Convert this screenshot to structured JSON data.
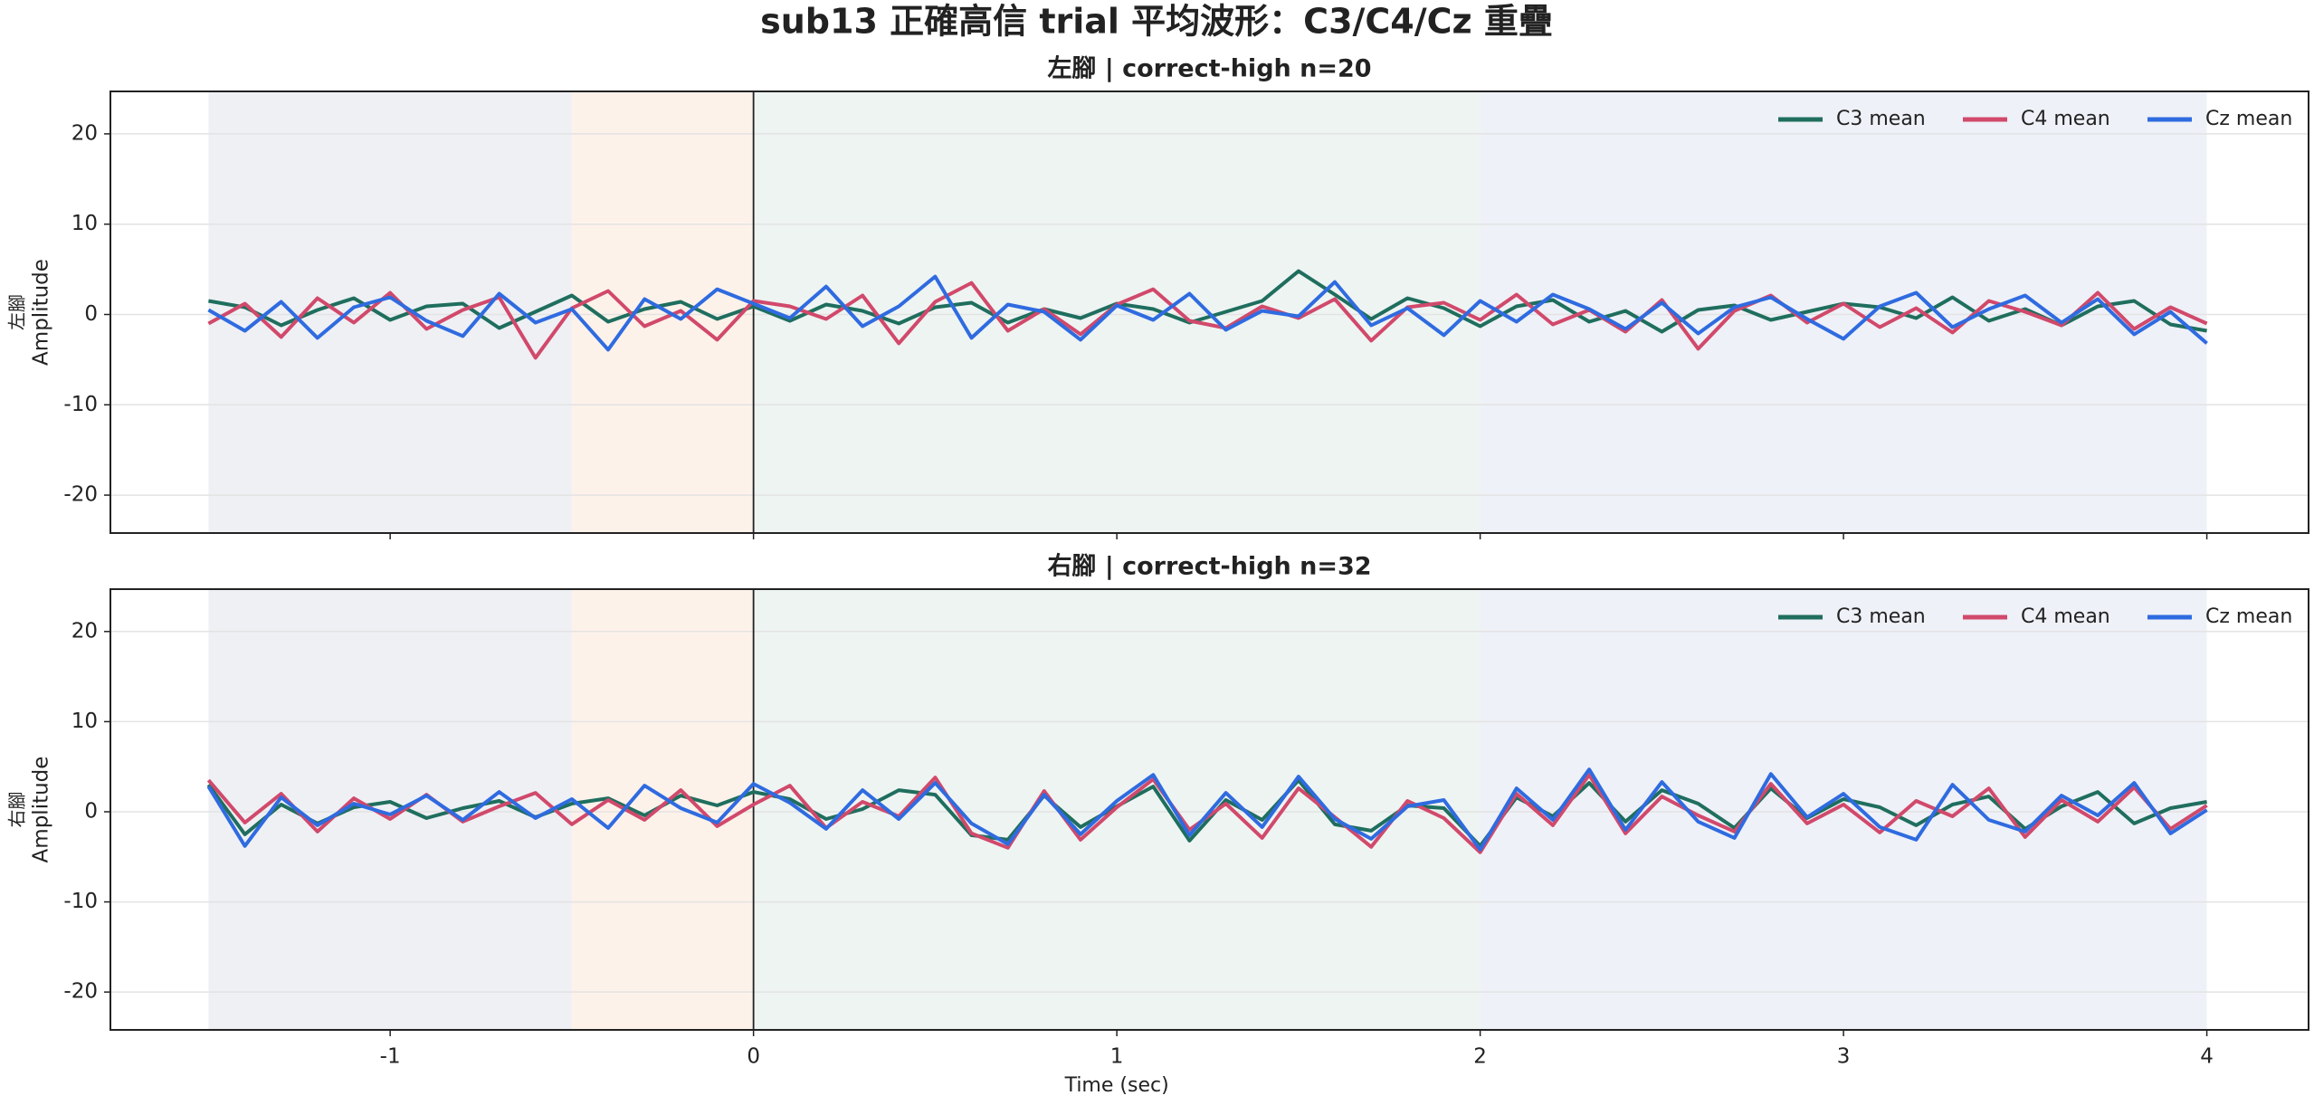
{
  "title": "sub13 正確高信 trial 平均波形：C3/C4/Cz 重疊",
  "chart_data": [
    {
      "type": "line",
      "title": "左腳 | correct-high n=20",
      "ylabel_group": "左腳",
      "ylabel": "Amplitude",
      "xlim": [
        -1.77,
        4.28
      ],
      "ylim": [
        -24.2,
        24.7
      ],
      "xticks": [
        -1,
        0,
        1,
        2,
        3,
        4
      ],
      "yticks": [
        -20,
        -10,
        0,
        10,
        20
      ],
      "show_xtick_labels": false,
      "grid": "y",
      "legend": "upper right",
      "vline": 0,
      "spans": [
        {
          "start": -1.5,
          "end": -0.5,
          "color": "#eef0f4"
        },
        {
          "start": -0.5,
          "end": 0,
          "color": "#fdf2ea"
        },
        {
          "start": 0,
          "end": 2,
          "color": "#eef4f2"
        },
        {
          "start": 2,
          "end": 4,
          "color": "#eef1f7"
        }
      ],
      "x": [
        -1.5,
        -1.4,
        -1.3,
        -1.2,
        -1.1,
        -1.0,
        -0.9,
        -0.8,
        -0.7,
        -0.6,
        -0.5,
        -0.4,
        -0.3,
        -0.2,
        -0.1,
        0,
        0.1,
        0.2,
        0.3,
        0.4,
        0.5,
        0.6,
        0.7,
        0.8,
        0.9,
        1.0,
        1.1,
        1.2,
        1.3,
        1.4,
        1.5,
        1.6,
        1.7,
        1.8,
        1.9,
        2.0,
        2.1,
        2.2,
        2.3,
        2.4,
        2.5,
        2.6,
        2.7,
        2.8,
        2.9,
        3.0,
        3.1,
        3.2,
        3.3,
        3.4,
        3.5,
        3.6,
        3.7,
        3.8,
        3.9,
        4.0
      ],
      "series": [
        {
          "name": "C3 mean",
          "color": "#1f6e5e",
          "values": [
            1.5,
            0.8,
            -1.2,
            0.5,
            1.8,
            -0.6,
            0.9,
            1.2,
            -1.5,
            0.3,
            2.1,
            -0.8,
            0.6,
            1.4,
            -0.5,
            0.9,
            -0.7,
            1.1,
            0.4,
            -1.0,
            0.8,
            1.3,
            -0.9,
            0.6,
            -0.4,
            1.2,
            0.6,
            -0.9,
            0.3,
            1.5,
            4.8,
            2.2,
            -0.5,
            1.8,
            0.7,
            -1.3,
            0.9,
            1.6,
            -0.8,
            0.4,
            -1.9,
            0.5,
            1.0,
            -0.6,
            0.3,
            1.2,
            0.8,
            -0.4,
            1.9,
            -0.7,
            0.6,
            -1.2,
            0.9,
            1.5,
            -1.1,
            -1.8
          ]
        },
        {
          "name": "C4 mean",
          "color": "#d1496b",
          "values": [
            -1.0,
            1.2,
            -2.5,
            1.8,
            -0.9,
            2.4,
            -1.6,
            0.5,
            1.9,
            -4.8,
            0.7,
            2.6,
            -1.3,
            0.4,
            -2.8,
            1.5,
            0.9,
            -0.5,
            2.1,
            -3.2,
            1.4,
            3.5,
            -1.8,
            0.6,
            -2.2,
            1.1,
            2.8,
            -0.7,
            -1.5,
            0.9,
            -0.4,
            1.7,
            -2.9,
            0.8,
            1.3,
            -0.6,
            2.2,
            -1.1,
            0.5,
            -1.9,
            1.6,
            -3.8,
            0.4,
            2.1,
            -0.9,
            1.2,
            -1.4,
            0.7,
            -2.0,
            1.5,
            0.3,
            -1.2,
            2.4,
            -1.6,
            0.8,
            -1.0
          ]
        },
        {
          "name": "Cz mean",
          "color": "#2f6be0",
          "values": [
            0.5,
            -1.8,
            1.4,
            -2.6,
            0.8,
            1.9,
            -0.7,
            -2.4,
            2.3,
            -0.9,
            0.6,
            -3.9,
            1.7,
            -0.5,
            2.8,
            1.2,
            -0.4,
            3.1,
            -1.3,
            0.9,
            4.2,
            -2.6,
            1.1,
            0.3,
            -2.8,
            1.0,
            -0.6,
            2.3,
            -1.7,
            0.4,
            -0.2,
            3.6,
            -1.2,
            0.7,
            -2.3,
            1.5,
            -0.8,
            2.2,
            0.6,
            -1.6,
            1.3,
            -2.1,
            0.8,
            1.9,
            -0.5,
            -2.7,
            0.9,
            2.4,
            -1.4,
            0.6,
            2.1,
            -0.9,
            1.7,
            -2.2,
            0.3,
            -3.2
          ]
        }
      ]
    },
    {
      "type": "line",
      "title": "右腳 | correct-high n=32",
      "ylabel_group": "右腳",
      "ylabel": "Amplitude",
      "xlabel": "Time (sec)",
      "xlim": [
        -1.77,
        4.28
      ],
      "ylim": [
        -24.2,
        24.7
      ],
      "xticks": [
        -1,
        0,
        1,
        2,
        3,
        4
      ],
      "yticks": [
        -20,
        -10,
        0,
        10,
        20
      ],
      "show_xtick_labels": true,
      "grid": "y",
      "legend": "upper right",
      "vline": 0,
      "spans": [
        {
          "start": -1.5,
          "end": -0.5,
          "color": "#eef0f4"
        },
        {
          "start": -0.5,
          "end": 0,
          "color": "#fdf2ea"
        },
        {
          "start": 0,
          "end": 2,
          "color": "#eef4f2"
        },
        {
          "start": 2,
          "end": 4,
          "color": "#eef1f7"
        }
      ],
      "x": [
        -1.5,
        -1.4,
        -1.3,
        -1.2,
        -1.1,
        -1.0,
        -0.9,
        -0.8,
        -0.7,
        -0.6,
        -0.5,
        -0.4,
        -0.3,
        -0.2,
        -0.1,
        0,
        0.1,
        0.2,
        0.3,
        0.4,
        0.5,
        0.6,
        0.7,
        0.8,
        0.9,
        1.0,
        1.1,
        1.2,
        1.3,
        1.4,
        1.5,
        1.6,
        1.7,
        1.8,
        1.9,
        2.0,
        2.1,
        2.2,
        2.3,
        2.4,
        2.5,
        2.6,
        2.7,
        2.8,
        2.9,
        3.0,
        3.1,
        3.2,
        3.3,
        3.4,
        3.5,
        3.6,
        3.7,
        3.8,
        3.9,
        4.0
      ],
      "series": [
        {
          "name": "C3 mean",
          "color": "#1f6e5e",
          "values": [
            3.0,
            -2.5,
            0.8,
            -1.3,
            0.5,
            1.1,
            -0.7,
            0.4,
            1.2,
            -0.6,
            0.9,
            1.5,
            -0.4,
            1.8,
            0.7,
            2.2,
            1.4,
            -0.8,
            0.3,
            2.4,
            1.9,
            -2.6,
            -3.1,
            1.8,
            -1.7,
            0.6,
            2.8,
            -3.2,
            1.3,
            -0.9,
            3.5,
            -1.4,
            -2.1,
            0.7,
            0.4,
            -3.8,
            1.6,
            -0.5,
            3.2,
            -1.1,
            2.4,
            0.9,
            -1.8,
            2.6,
            -0.7,
            1.4,
            0.5,
            -1.5,
            0.8,
            1.7,
            -1.9,
            0.6,
            2.2,
            -1.3,
            0.4,
            1.1
          ]
        },
        {
          "name": "C4 mean",
          "color": "#d1496b",
          "values": [
            3.5,
            -1.2,
            2.0,
            -2.2,
            1.5,
            -0.8,
            1.9,
            -1.1,
            0.6,
            2.1,
            -1.4,
            1.3,
            -0.9,
            2.4,
            -1.6,
            0.8,
            2.9,
            -1.8,
            1.1,
            -0.5,
            3.8,
            -2.4,
            -4.0,
            2.3,
            -3.1,
            0.5,
            3.6,
            -2.0,
            0.9,
            -2.9,
            2.6,
            -0.6,
            -3.9,
            1.2,
            -0.7,
            -4.5,
            2.0,
            -1.5,
            4.1,
            -2.4,
            1.7,
            -0.4,
            -2.2,
            3.1,
            -1.3,
            0.8,
            -2.3,
            1.2,
            -0.5,
            2.6,
            -2.8,
            1.3,
            -1.1,
            2.7,
            -1.9,
            0.7
          ]
        },
        {
          "name": "Cz mean",
          "color": "#2f6be0",
          "values": [
            2.8,
            -3.8,
            1.6,
            -1.5,
            0.9,
            -0.3,
            1.8,
            -0.9,
            2.2,
            -0.7,
            1.4,
            -1.8,
            2.9,
            0.4,
            -1.2,
            3.1,
            1.0,
            -1.9,
            2.4,
            -0.8,
            3.2,
            -1.3,
            -3.6,
            1.9,
            -2.5,
            1.2,
            4.1,
            -2.6,
            2.1,
            -1.7,
            3.9,
            -0.8,
            -3.0,
            0.6,
            1.3,
            -4.2,
            2.6,
            -0.9,
            4.7,
            -2.0,
            3.3,
            -1.1,
            -2.9,
            4.2,
            -0.6,
            2.0,
            -1.7,
            -3.1,
            3.0,
            -0.9,
            -2.2,
            1.8,
            -0.4,
            3.2,
            -2.4,
            0.2
          ]
        }
      ]
    }
  ]
}
